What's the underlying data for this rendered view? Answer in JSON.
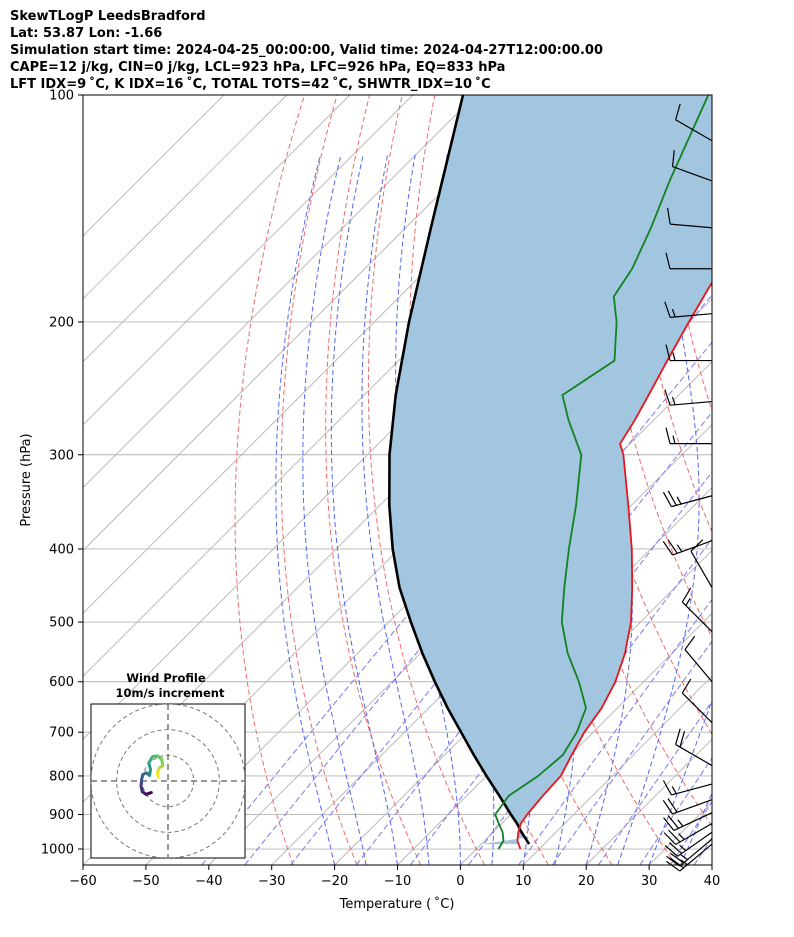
{
  "header": {
    "line1": "SkewTLogP LeedsBradford",
    "line2": "Lat: 53.87   Lon: -1.66",
    "line3": "Simulation start time: 2024-04-25_00:00:00, Valid time: 2024-04-27T12:00:00.00",
    "line4": "CAPE=12 j/kg, CIN=0 j/kg, LCL=923 hPa, LFC=926 hPa, EQ=833 hPa",
    "line5": "LFT IDX=9 ˚C, K IDX=16 ˚C, TOTAL TOTS=42 ˚C, SHWTR_IDX=10 ˚C"
  },
  "chart_data": {
    "type": "line",
    "diagram": "skew-T log-P",
    "xlabel": "Temperature ( ˚C)",
    "ylabel": "Pressure (hPa)",
    "xlim": [
      -60,
      40
    ],
    "ylim": [
      1050,
      100
    ],
    "yscale": "log",
    "x_ticks": [
      "−60",
      "−50",
      "−40",
      "−30",
      "−20",
      "−10",
      "0",
      "10",
      "20",
      "30",
      "40"
    ],
    "y_ticks": [
      "100",
      "200",
      "300",
      "400",
      "500",
      "600",
      "700",
      "800",
      "900",
      "1000"
    ],
    "grid": true,
    "colors": {
      "temperature": "#e8141a",
      "dewpoint": "#10821e",
      "parcel": "#000000",
      "shade": "#a3c6e0",
      "dry_adiabat": "#f06a6a",
      "moist_adiabat": "#5266f0",
      "mixing_ratio": "#7a7af0",
      "isotherm": "#b4b4b4"
    },
    "series": [
      {
        "key": "temperature",
        "points": [
          [
            1000,
            7.0
          ],
          [
            975,
            5.2
          ],
          [
            950,
            4.0
          ],
          [
            925,
            3.0
          ],
          [
            900,
            2.6
          ],
          [
            850,
            2.1
          ],
          [
            800,
            1.8
          ],
          [
            750,
            0.2
          ],
          [
            700,
            -1.4
          ],
          [
            650,
            -2.5
          ],
          [
            600,
            -4.5
          ],
          [
            550,
            -7.5
          ],
          [
            500,
            -11.5
          ],
          [
            450,
            -16.8
          ],
          [
            400,
            -23.0
          ],
          [
            350,
            -30.5
          ],
          [
            300,
            -39.3
          ],
          [
            290,
            -41.6
          ],
          [
            270,
            -43.0
          ],
          [
            250,
            -44.8
          ],
          [
            225,
            -47.3
          ],
          [
            200,
            -50.0
          ],
          [
            180,
            -52.3
          ],
          [
            160,
            -54.5
          ],
          [
            140,
            -56.0
          ],
          [
            120,
            -57.5
          ],
          [
            100,
            -62.0
          ]
        ]
      },
      {
        "key": "dewpoint",
        "points": [
          [
            1000,
            3.5
          ],
          [
            975,
            3.0
          ],
          [
            950,
            1.5
          ],
          [
            925,
            -0.5
          ],
          [
            900,
            -2.5
          ],
          [
            850,
            -3.3
          ],
          [
            800,
            -1.8
          ],
          [
            750,
            -1.2
          ],
          [
            700,
            -2.6
          ],
          [
            650,
            -5.0
          ],
          [
            600,
            -10.3
          ],
          [
            550,
            -16.6
          ],
          [
            500,
            -22.5
          ],
          [
            450,
            -27.6
          ],
          [
            400,
            -33.0
          ],
          [
            350,
            -38.8
          ],
          [
            300,
            -46.0
          ],
          [
            270,
            -53.5
          ],
          [
            250,
            -58.5
          ],
          [
            225,
            -55.7
          ],
          [
            200,
            -61.5
          ],
          [
            185,
            -66.0
          ],
          [
            170,
            -67.5
          ],
          [
            150,
            -71.0
          ],
          [
            130,
            -75.5
          ],
          [
            100,
            -83.0
          ]
        ]
      },
      {
        "key": "parcel",
        "points": [
          [
            985,
            7.6
          ],
          [
            950,
            4.5
          ],
          [
            925,
            2.4
          ],
          [
            900,
            0.0
          ],
          [
            850,
            -4.8
          ],
          [
            800,
            -10.0
          ],
          [
            750,
            -15.4
          ],
          [
            700,
            -21.0
          ],
          [
            650,
            -27.0
          ],
          [
            600,
            -33.2
          ],
          [
            550,
            -39.7
          ],
          [
            500,
            -46.5
          ],
          [
            450,
            -53.8
          ],
          [
            400,
            -61.0
          ],
          [
            350,
            -68.5
          ],
          [
            300,
            -76.5
          ],
          [
            250,
            -85.0
          ],
          [
            200,
            -94.5
          ],
          [
            150,
            -106.0
          ],
          [
            100,
            -122.0
          ]
        ]
      }
    ],
    "wind_barbs": [
      {
        "p": 985,
        "speed_kt": 25,
        "dir": 230
      },
      {
        "p": 970,
        "speed_kt": 25,
        "dir": 230
      },
      {
        "p": 950,
        "speed_kt": 25,
        "dir": 235
      },
      {
        "p": 925,
        "speed_kt": 25,
        "dir": 240
      },
      {
        "p": 895,
        "speed_kt": 25,
        "dir": 245
      },
      {
        "p": 860,
        "speed_kt": 20,
        "dir": 250
      },
      {
        "p": 820,
        "speed_kt": 15,
        "dir": 255
      },
      {
        "p": 775,
        "speed_kt": 20,
        "dir": 300
      },
      {
        "p": 680,
        "speed_kt": 10,
        "dir": 315
      },
      {
        "p": 600,
        "speed_kt": 10,
        "dir": 320
      },
      {
        "p": 515,
        "speed_kt": 15,
        "dir": 315
      },
      {
        "p": 450,
        "speed_kt": 10,
        "dir": 330
      },
      {
        "p": 390,
        "speed_kt": 25,
        "dir": 250
      },
      {
        "p": 340,
        "speed_kt": 25,
        "dir": 255
      },
      {
        "p": 290,
        "speed_kt": 15,
        "dir": 270
      },
      {
        "p": 255,
        "speed_kt": 15,
        "dir": 265
      },
      {
        "p": 225,
        "speed_kt": 15,
        "dir": 270
      },
      {
        "p": 195,
        "speed_kt": 15,
        "dir": 265
      },
      {
        "p": 170,
        "speed_kt": 10,
        "dir": 270
      },
      {
        "p": 150,
        "speed_kt": 10,
        "dir": 275
      },
      {
        "p": 130,
        "speed_kt": 10,
        "dir": 290
      },
      {
        "p": 115,
        "speed_kt": 10,
        "dir": 300
      }
    ],
    "hodograph": {
      "title_line1": "Wind Profile",
      "title_line2": "10m/s increment",
      "range_ms": 30,
      "rings_ms": [
        10,
        20,
        30
      ],
      "points": [
        [
          -6.5,
          -4.5
        ],
        [
          -8.5,
          -5.2
        ],
        [
          -10.0,
          -4.2
        ],
        [
          -10.5,
          -2.0
        ],
        [
          -10.3,
          0.5
        ],
        [
          -9.8,
          2.5
        ],
        [
          -8.5,
          3.2
        ],
        [
          -7.2,
          2.2
        ],
        [
          -6.8,
          4.5
        ],
        [
          -7.5,
          7.0
        ],
        [
          -6.0,
          9.5
        ],
        [
          -4.0,
          9.8
        ],
        [
          -2.5,
          8.5
        ],
        [
          -2.0,
          6.0
        ],
        [
          -3.5,
          5.0
        ],
        [
          -4.2,
          3.0
        ],
        [
          -3.8,
          1.5
        ]
      ]
    }
  }
}
